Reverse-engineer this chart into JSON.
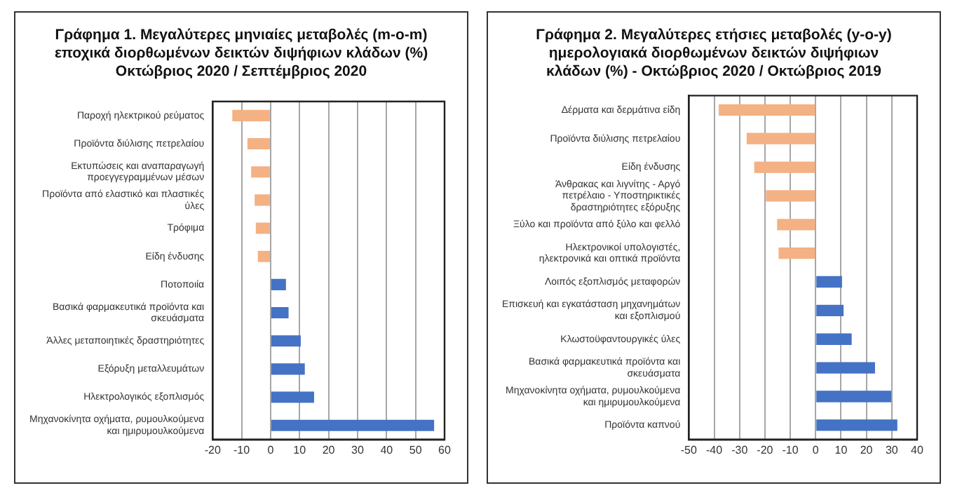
{
  "chart_data": [
    {
      "type": "bar",
      "orientation": "horizontal",
      "title": "Γράφημα 1. Μεγαλύτερες μηνιαίες μεταβολές (m-o-m) εποχικά διορθωμένων δεικτών διψήφιων κλάδων (%) Οκτώβριος 2020 / Σεπτέμβριος 2020",
      "categories": [
        "Παροχή ηλεκτρικού ρεύματος",
        "Προϊόντα διύλισης πετρελαίου",
        "Εκτυπώσεις και αναπαραγωγή προεγγεγραμμένων μέσων",
        "Προϊόντα από ελαστικό και πλαστικές ύλες",
        "Τρόφιμα",
        "Είδη ένδυσης",
        "Ποτοποιία",
        "Βασικά φαρμακευτικά προϊόντα και σκευάσματα",
        "Άλλες μεταποιητικές δραστηριότητες",
        "Εξόρυξη μεταλλευμάτων",
        "Ηλεκτρολογικός εξοπλισμός",
        "Μηχανοκίνητα οχήματα, ρυμουλκούμενα και ημιρυμουλκούμενα"
      ],
      "values": [
        -13.2,
        -8,
        -6.7,
        -5.5,
        -5.1,
        -4.4,
        5.3,
        6.2,
        10.4,
        11.8,
        15,
        56.4
      ],
      "colors": [
        "#f4b183",
        "#f4b183",
        "#f4b183",
        "#f4b183",
        "#f4b183",
        "#f4b183",
        "#4472c4",
        "#4472c4",
        "#4472c4",
        "#4472c4",
        "#4472c4",
        "#4472c4"
      ],
      "xlim": [
        -20,
        60
      ],
      "xticks": [
        -20,
        -10,
        0,
        10,
        20,
        30,
        40,
        50,
        60
      ],
      "grid": "x"
    },
    {
      "type": "bar",
      "orientation": "horizontal",
      "title": "Γράφημα 2. Μεγαλύτερες ετήσιες μεταβολές (y-o-y) ημερολογιακά διορθωμένων δεικτών διψήφιων κλάδων (%) - Οκτώβριος 2020 / Οκτώβριος 2019",
      "categories": [
        "Δέρματα και δερμάτινα είδη",
        "Προϊόντα διύλισης πετρελαίου",
        "Είδη ένδυσης",
        "Άνθρακας και λιγνίτης - Αργό πετρέλαιο - Υποστηρικτικές δραστηριότητες εξόρυξης",
        "Ξύλο και προϊόντα από ξύλο και φελλό",
        "Ηλεκτρονικοί υπολογιστές, ηλεκτρονικά και οπτικά προϊόντα",
        "Λοιπός εξοπλισμός μεταφορών",
        "Επισκευή και εγκατάσταση μηχανημάτων και εξοπλισμού",
        "Κλωστοϋφαντουργικές ύλες",
        "Βασικά φαρμακευτικά προϊόντα και σκευάσματα",
        "Μηχανοκίνητα οχήματα, ρυμουλκούμενα και ημιρυμουλκούμενα",
        "Προϊόντα καπνού"
      ],
      "values": [
        -38.2,
        -27.2,
        -24.2,
        -19.6,
        -15.2,
        -14.6,
        10.4,
        11,
        14.2,
        23.4,
        29.8,
        32.2
      ],
      "colors": [
        "#f4b183",
        "#f4b183",
        "#f4b183",
        "#f4b183",
        "#f4b183",
        "#f4b183",
        "#4472c4",
        "#4472c4",
        "#4472c4",
        "#4472c4",
        "#4472c4",
        "#4472c4"
      ],
      "xlim": [
        -50,
        40
      ],
      "xticks": [
        -50,
        -40,
        -30,
        -20,
        -10,
        0,
        10,
        20,
        30,
        40
      ],
      "grid": "x"
    }
  ]
}
